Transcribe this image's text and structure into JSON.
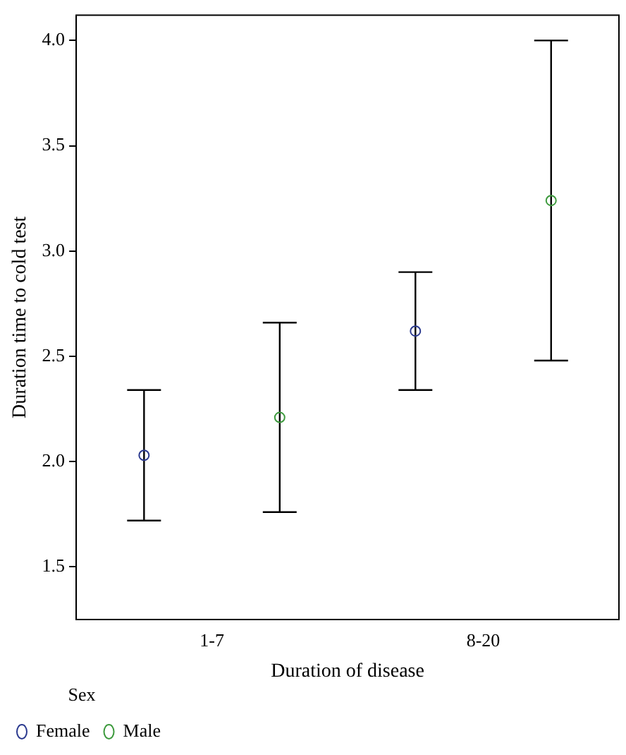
{
  "chart_data": {
    "type": "scatter",
    "xlabel": "Duration of disease",
    "ylabel": "Duration time to cold test",
    "legend_title": "Sex",
    "categories": [
      "1-7",
      "8-20"
    ],
    "series": [
      {
        "name": "Female",
        "color": "#2b3a8f",
        "x": [
          "1-7",
          "8-20"
        ],
        "values": [
          2.03,
          2.62
        ],
        "errors": [
          [
            1.72,
            2.34
          ],
          [
            2.34,
            2.9
          ]
        ]
      },
      {
        "name": "Male",
        "color": "#3d9a3d",
        "x": [
          "1-7",
          "8-20"
        ],
        "values": [
          2.21,
          3.24
        ],
        "errors": [
          [
            1.76,
            2.66
          ],
          [
            2.48,
            4.0
          ]
        ]
      }
    ],
    "ylim": [
      1.25,
      4.12
    ],
    "yticks": [
      {
        "value": 1.5,
        "label": "1.5"
      },
      {
        "value": 2.0,
        "label": "2.0"
      },
      {
        "value": 2.5,
        "label": "2.5"
      },
      {
        "value": 3.0,
        "label": "3.0"
      },
      {
        "value": 3.5,
        "label": "3.5"
      },
      {
        "value": 4.0,
        "label": "4.0"
      }
    ],
    "grid": false,
    "legend": "bottom left",
    "marker": "circle"
  }
}
